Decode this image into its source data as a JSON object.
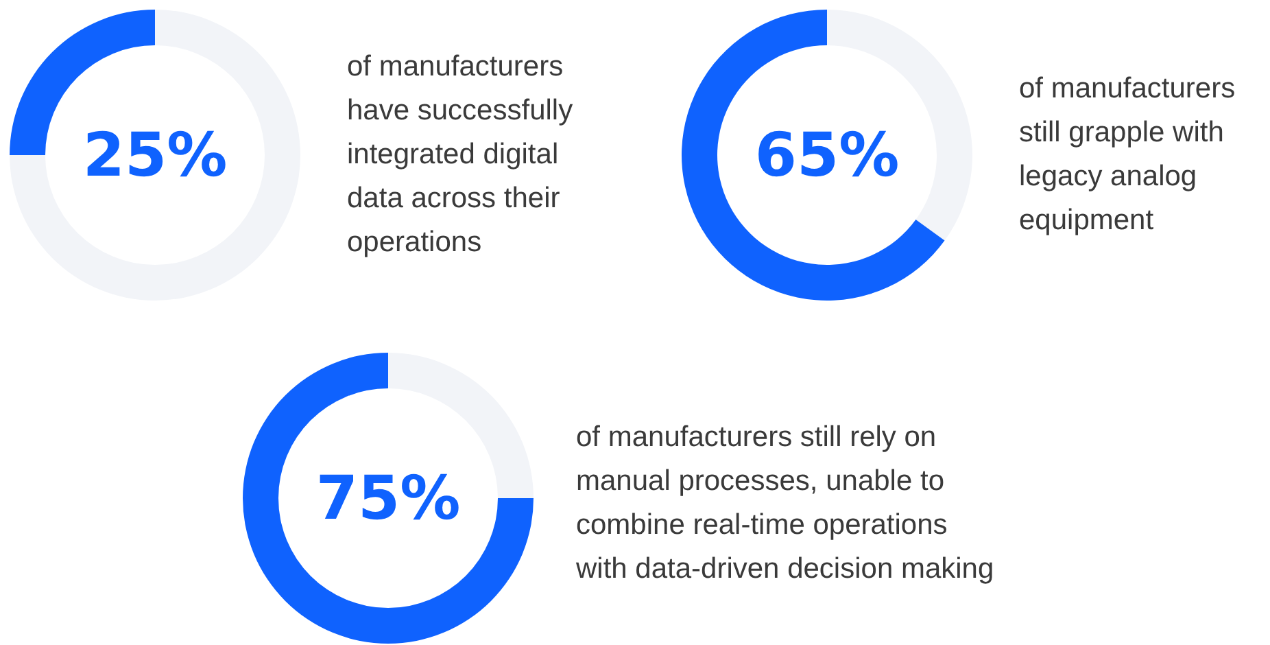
{
  "chart_data": [
    {
      "type": "donut",
      "categories": [
        null,
        null
      ],
      "values": [
        75,
        25
      ],
      "colors": [
        "#f2f4f8",
        "#0f62fe"
      ],
      "annotations": [
        "25%",
        "of manufacturers\nhave successfully\nintegrated digital\ndata across their\noperations"
      ]
    },
    {
      "type": "donut",
      "categories": [
        null,
        null
      ],
      "values": [
        35,
        65
      ],
      "colors": [
        "#f2f4f8",
        "#0f62fe"
      ],
      "annotations": [
        "65%",
        "of manufacturers\nstill grapple with\nlegacy analog\nequipment"
      ]
    },
    {
      "type": "donut",
      "categories": [
        null,
        null
      ],
      "values": [
        25,
        75
      ],
      "colors": [
        "#f2f4f8",
        "#0f62fe"
      ],
      "annotations": [
        "75%",
        "of manufacturers still rely on\nmanual processes, unable to\ncombine real-time operations\nwith data-driven decision making"
      ]
    }
  ]
}
